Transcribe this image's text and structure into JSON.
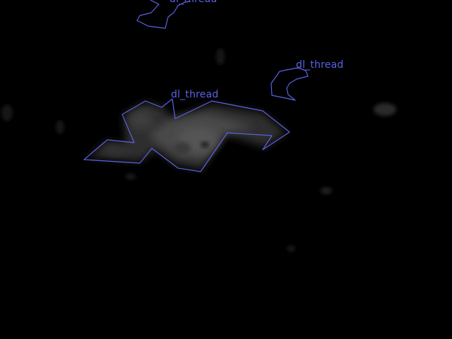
{
  "image": {
    "background_color": "#000000",
    "annotation_color": "#5b62e6"
  },
  "annotations": [
    {
      "label": "dl_thread"
    },
    {
      "label": "dl_thread"
    },
    {
      "label": "dl_thread"
    }
  ]
}
